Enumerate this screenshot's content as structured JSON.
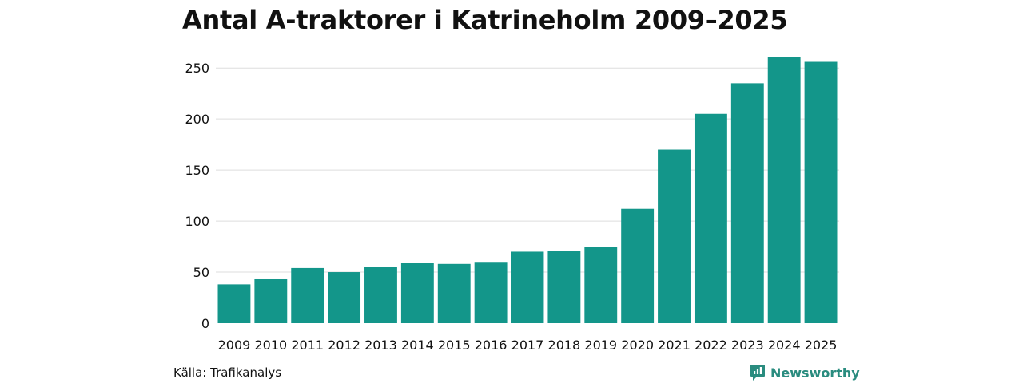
{
  "chart_data": {
    "type": "bar",
    "title": "Antal A-traktorer i Katrineholm 2009–2025",
    "categories": [
      "2009",
      "2010",
      "2011",
      "2012",
      "2013",
      "2014",
      "2015",
      "2016",
      "2017",
      "2018",
      "2019",
      "2020",
      "2021",
      "2022",
      "2023",
      "2024",
      "2025"
    ],
    "values": [
      38,
      43,
      54,
      50,
      55,
      59,
      58,
      60,
      70,
      71,
      75,
      112,
      170,
      205,
      235,
      261,
      256
    ],
    "ylim": [
      0,
      265
    ],
    "yticks": [
      0,
      50,
      100,
      150,
      200,
      250
    ],
    "xlabel": "",
    "ylabel": "",
    "grid": true,
    "bar_color": "#13968a",
    "grid_color": "#dddddd"
  },
  "footer": {
    "source": "Källa: Trafikanalys",
    "brand": "Newsworthy",
    "brand_icon": "newsworthy-logo-icon",
    "brand_color": "#2a8c7f"
  }
}
